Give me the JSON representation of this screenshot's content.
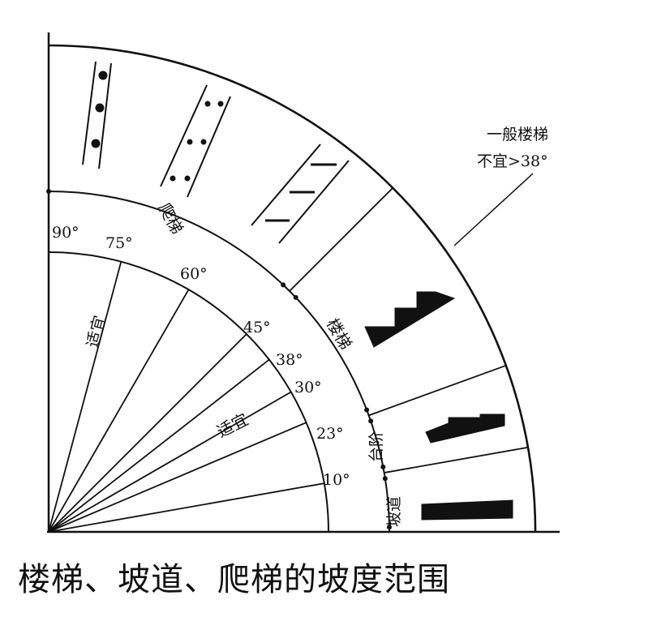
{
  "caption": "楼梯、坡道、爬梯的坡度范围",
  "callout": {
    "line1": "一般楼梯",
    "line2": "不宜>38°"
  },
  "zones": {
    "ladder": "爬梯",
    "stair": "楼梯",
    "step": "台阶",
    "ramp": "坡道"
  },
  "suitable_labels": [
    "适宜",
    "适宜"
  ],
  "angle_lines": [
    10,
    23,
    30,
    38,
    45,
    60,
    75
  ],
  "zone_boundaries": [
    10,
    20,
    45
  ],
  "angle_labels": [
    "90°",
    "75°",
    "60°",
    "45°",
    "38°",
    "30°",
    "23°",
    "10°"
  ]
}
